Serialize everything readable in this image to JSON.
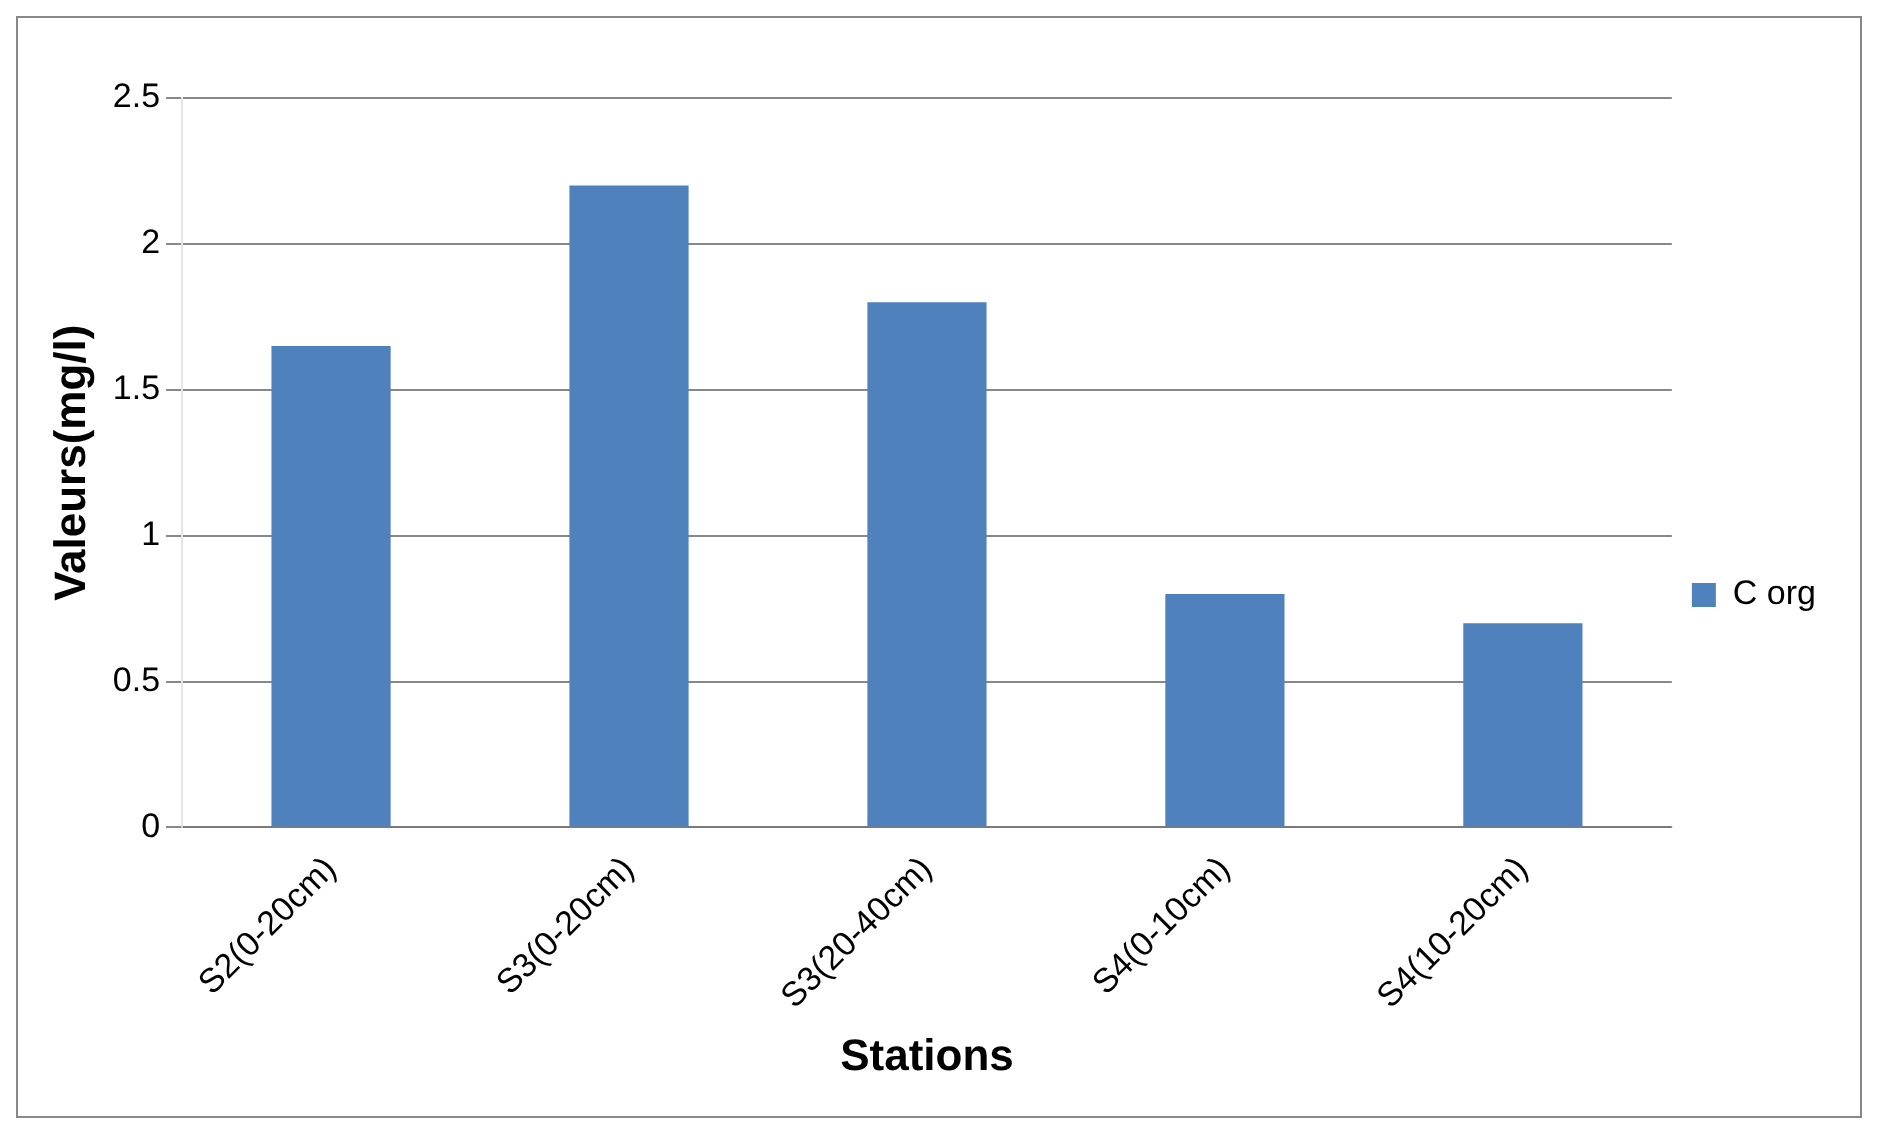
{
  "chart_data": {
    "type": "bar",
    "xlabel": "Stations",
    "ylabel": "Valeurs(mg/l)",
    "categories": [
      "S2(0-20cm)",
      "S3(0-20cm)",
      "S3(20-40cm)",
      "S4(0-10cm)",
      "S4(10-20cm)"
    ],
    "series": [
      {
        "name": "C org",
        "color": "#4f81bd",
        "values": [
          1.65,
          2.2,
          1.8,
          0.8,
          0.7
        ]
      }
    ],
    "ylim": [
      0,
      2.5
    ],
    "yticks": [
      0,
      0.5,
      1,
      1.5,
      2,
      2.5
    ],
    "grid": "y",
    "legend": "right"
  }
}
